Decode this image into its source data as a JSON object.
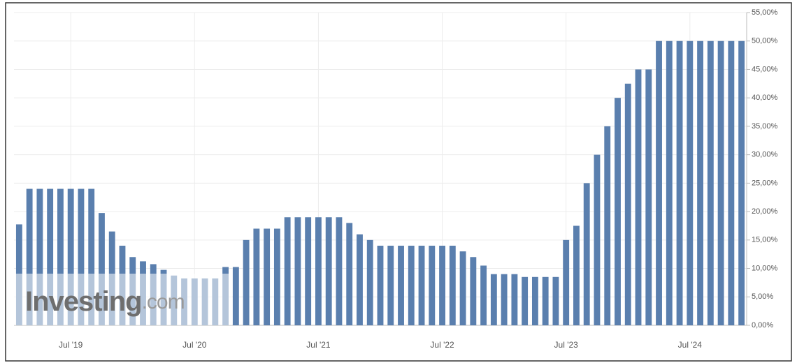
{
  "chart_data": {
    "type": "bar",
    "watermark": {
      "brand": "Investing",
      "suffix": ".com"
    },
    "categories": [
      null,
      null,
      null,
      null,
      null,
      "Jul '19",
      null,
      null,
      null,
      null,
      null,
      null,
      null,
      null,
      null,
      null,
      null,
      "Jul '20",
      null,
      null,
      null,
      null,
      null,
      null,
      null,
      null,
      null,
      null,
      null,
      "Jul '21",
      null,
      null,
      null,
      null,
      null,
      null,
      null,
      null,
      null,
      null,
      null,
      "Jul '22",
      null,
      null,
      null,
      null,
      null,
      null,
      null,
      null,
      null,
      null,
      null,
      "Jul '23",
      null,
      null,
      null,
      null,
      null,
      null,
      null,
      null,
      null,
      null,
      null,
      "Jul '24",
      null,
      null,
      null,
      null,
      null
    ],
    "values": [
      17.75,
      24,
      24,
      24,
      24,
      24,
      24,
      24,
      19.75,
      16.5,
      14,
      12,
      11.25,
      10.75,
      9.75,
      8.75,
      8.25,
      8.25,
      8.25,
      8.25,
      10.25,
      10.25,
      15,
      17,
      17,
      17,
      19,
      19,
      19,
      19,
      19,
      19,
      18,
      16,
      15,
      14,
      14,
      14,
      14,
      14,
      14,
      14,
      14,
      13,
      12,
      10.5,
      9,
      9,
      9,
      8.5,
      8.5,
      8.5,
      8.5,
      15,
      17.5,
      25,
      30,
      35,
      40,
      42.5,
      45,
      45,
      50,
      50,
      50,
      50,
      50,
      50,
      50,
      50,
      50
    ],
    "color": "#5a7fae",
    "ylim": [
      0,
      55
    ],
    "yticks": [
      {
        "value": 0,
        "label": "0,00%"
      },
      {
        "value": 5,
        "label": "5,00%"
      },
      {
        "value": 10,
        "label": "10,00%"
      },
      {
        "value": 15,
        "label": "15,00%"
      },
      {
        "value": 20,
        "label": "20,00%"
      },
      {
        "value": 25,
        "label": "25,00%"
      },
      {
        "value": 30,
        "label": "30,00%"
      },
      {
        "value": 35,
        "label": "35,00%"
      },
      {
        "value": 40,
        "label": "40,00%"
      },
      {
        "value": 45,
        "label": "45,00%"
      },
      {
        "value": 50,
        "label": "50,00%"
      },
      {
        "value": 55,
        "label": "55,00%"
      }
    ],
    "grid": true
  }
}
